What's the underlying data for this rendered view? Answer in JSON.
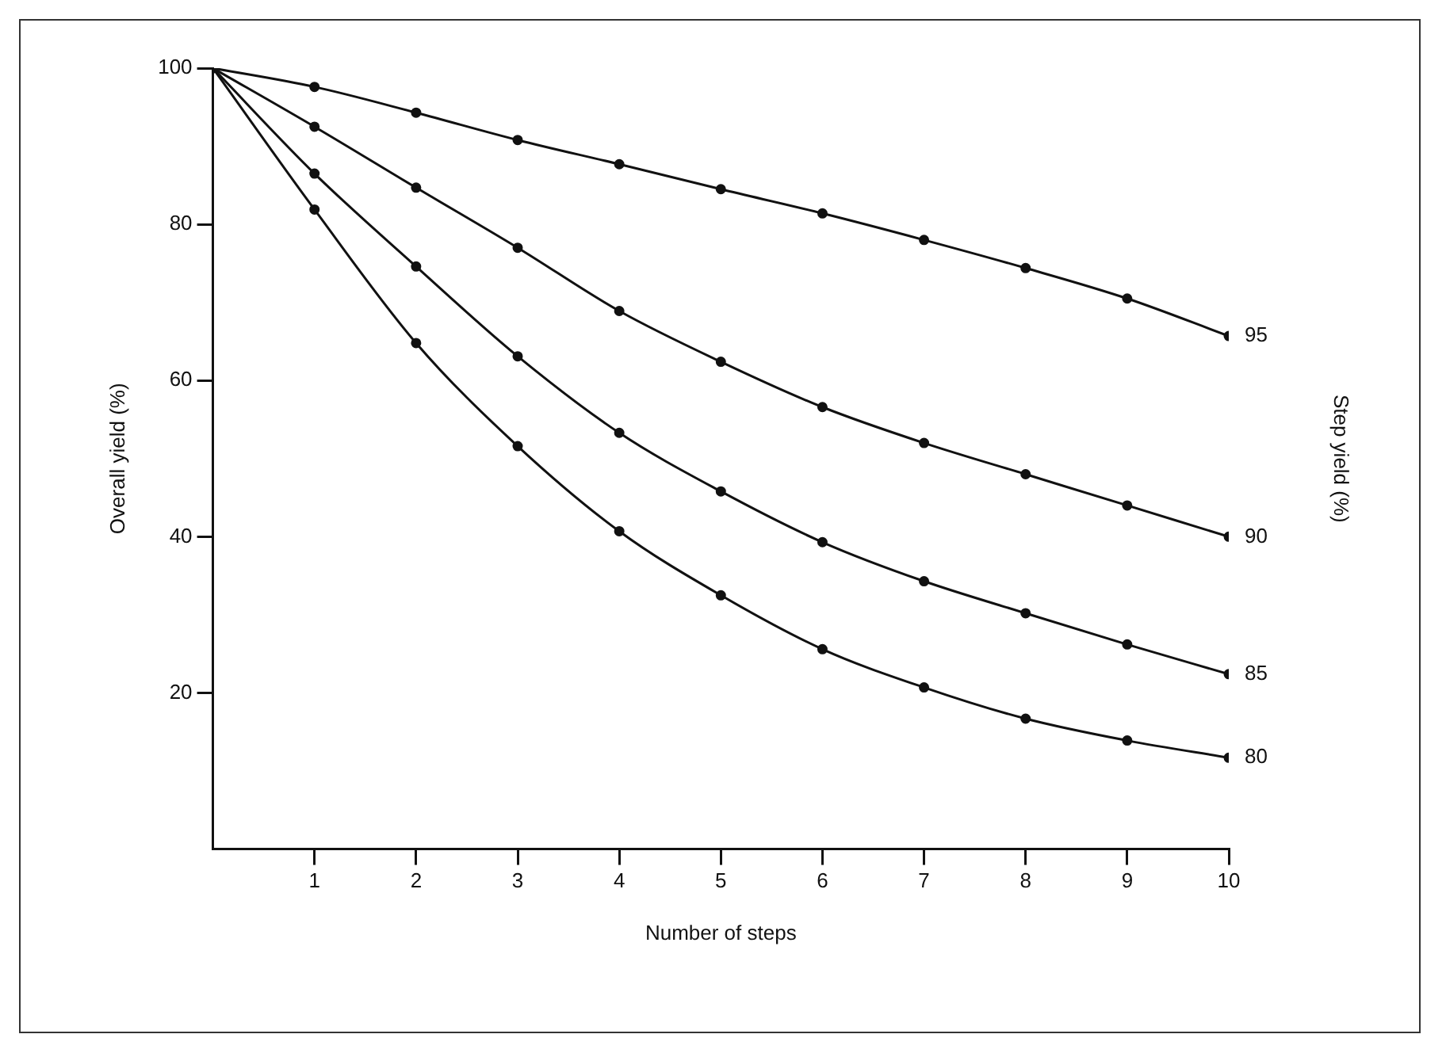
{
  "chart_data": {
    "type": "line",
    "xlabel": "Number of steps",
    "ylabel": "Overall yield (%)",
    "x": [
      0,
      1,
      2,
      3,
      4,
      5,
      6,
      7,
      8,
      9,
      10
    ],
    "xlim": [
      0,
      10
    ],
    "xticks": [
      1,
      2,
      3,
      4,
      5,
      6,
      7,
      8,
      9,
      10
    ],
    "ylim": [
      0,
      100
    ],
    "yticks": [
      20,
      40,
      60,
      80,
      100
    ],
    "grid": false,
    "legend": false,
    "marker": "circle",
    "line_style": "solid",
    "series": [
      {
        "name": "95",
        "color": "#111111",
        "values": [
          100,
          97.6,
          94.3,
          90.8,
          87.7,
          84.5,
          81.4,
          78,
          74.4,
          70.5,
          65.7
        ]
      },
      {
        "name": "90",
        "color": "#111111",
        "values": [
          100,
          92.5,
          84.7,
          77,
          68.9,
          62.4,
          56.6,
          52,
          48,
          44,
          40
        ]
      },
      {
        "name": "85",
        "color": "#111111",
        "values": [
          100,
          86.5,
          74.6,
          63.1,
          53.3,
          45.8,
          39.3,
          34.3,
          30.2,
          26.2,
          22.4
        ]
      },
      {
        "name": "80",
        "color": "#111111",
        "values": [
          100,
          81.9,
          64.8,
          51.6,
          40.7,
          32.5,
          25.6,
          20.7,
          16.7,
          13.9,
          11.7
        ]
      }
    ],
    "annotations": [
      "Step yield (%)"
    ]
  }
}
